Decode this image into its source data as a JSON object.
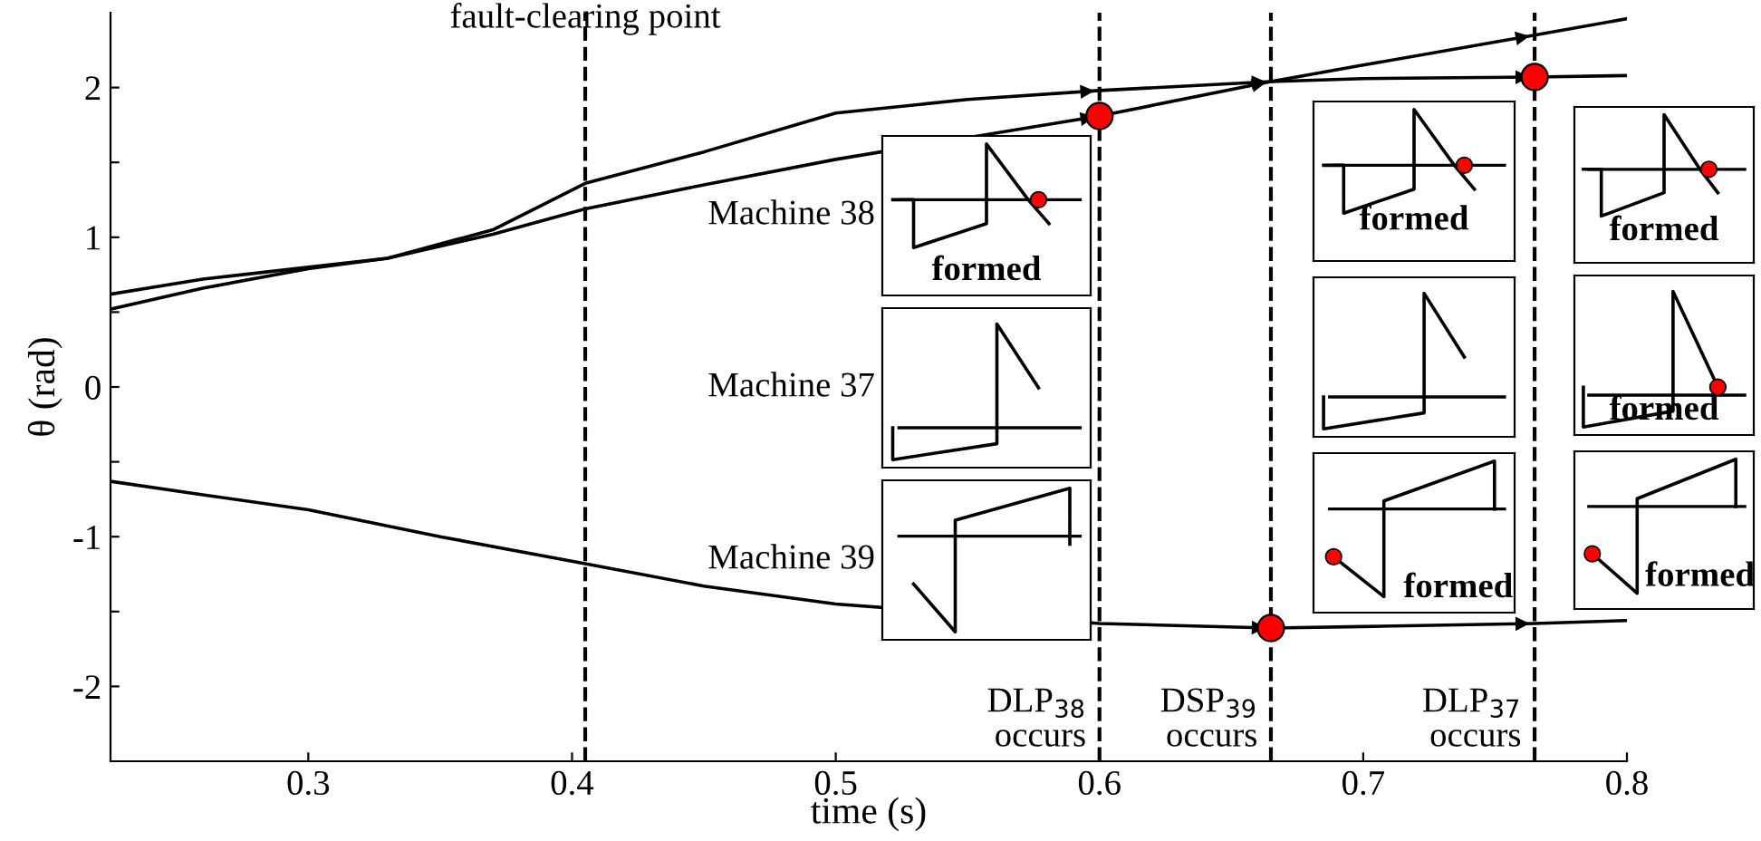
{
  "chart_data": {
    "type": "line",
    "xlabel": "time (s)",
    "ylabel": "θ (rad)",
    "xlim": [
      0.225,
      0.8
    ],
    "ylim": [
      -2.5,
      2.5
    ],
    "xticks": [
      0.3,
      0.4,
      0.5,
      0.6,
      0.7,
      0.8
    ],
    "yticks": [
      -2,
      {
        "value": -1.5,
        "label": null
      },
      -1,
      {
        "value": -0.5,
        "label": null
      },
      0,
      {
        "value": 0.5,
        "label": null
      },
      1,
      {
        "value": 1.5,
        "label": null
      },
      2
    ],
    "grid": false,
    "legend": false,
    "series": [
      {
        "color": "#000000",
        "x": [
          0.225,
          0.26,
          0.3,
          0.33,
          0.37,
          0.405,
          0.45,
          0.5,
          0.55,
          0.6,
          0.665,
          0.7,
          0.765,
          0.8
        ],
        "values": [
          0.62,
          0.72,
          0.8,
          0.86,
          1.05,
          1.36,
          1.57,
          1.83,
          1.92,
          1.98,
          2.04,
          2.06,
          2.07,
          2.08
        ]
      },
      {
        "color": "#000000",
        "x": [
          0.225,
          0.26,
          0.3,
          0.33,
          0.37,
          0.405,
          0.45,
          0.5,
          0.6,
          0.665,
          0.7,
          0.765,
          0.8
        ],
        "values": [
          0.52,
          0.66,
          0.79,
          0.86,
          1.02,
          1.19,
          1.35,
          1.52,
          1.81,
          2.04,
          2.15,
          2.35,
          2.46
        ]
      },
      {
        "color": "#000000",
        "x": [
          0.225,
          0.26,
          0.3,
          0.35,
          0.405,
          0.45,
          0.5,
          0.6,
          0.665,
          0.7,
          0.765,
          0.8
        ],
        "values": [
          -0.63,
          -0.72,
          -0.82,
          -1.0,
          -1.18,
          -1.33,
          -1.45,
          -1.58,
          -1.61,
          -1.6,
          -1.58,
          -1.56
        ]
      },
      {
        "type": "scatter",
        "color": "#ff0000",
        "marker": "circle",
        "x": [
          0.6,
          0.665,
          0.765
        ],
        "values": [
          1.81,
          -1.61,
          2.07
        ]
      }
    ],
    "ref_lines": [
      {
        "axis": "x",
        "value": 0.405,
        "label": "fault-clearing point",
        "line_style": "dashed",
        "color": "#000000"
      },
      {
        "axis": "x",
        "value": 0.6,
        "label": "DLP$_{38}$\noccurs",
        "line_style": "dashed",
        "color": "#000000"
      },
      {
        "axis": "x",
        "value": 0.665,
        "label": "DSP$_{39}$\noccurs",
        "line_style": "dashed",
        "color": "#000000"
      },
      {
        "axis": "x",
        "value": 0.765,
        "label": "DLP$_{37}$\noccurs",
        "line_style": "dashed",
        "color": "#000000"
      }
    ],
    "annotations": [
      "Machine 38",
      "Machine 37",
      "Machine 39",
      "formed",
      "formed",
      "formed",
      "formed",
      "formed",
      "formed"
    ]
  }
}
